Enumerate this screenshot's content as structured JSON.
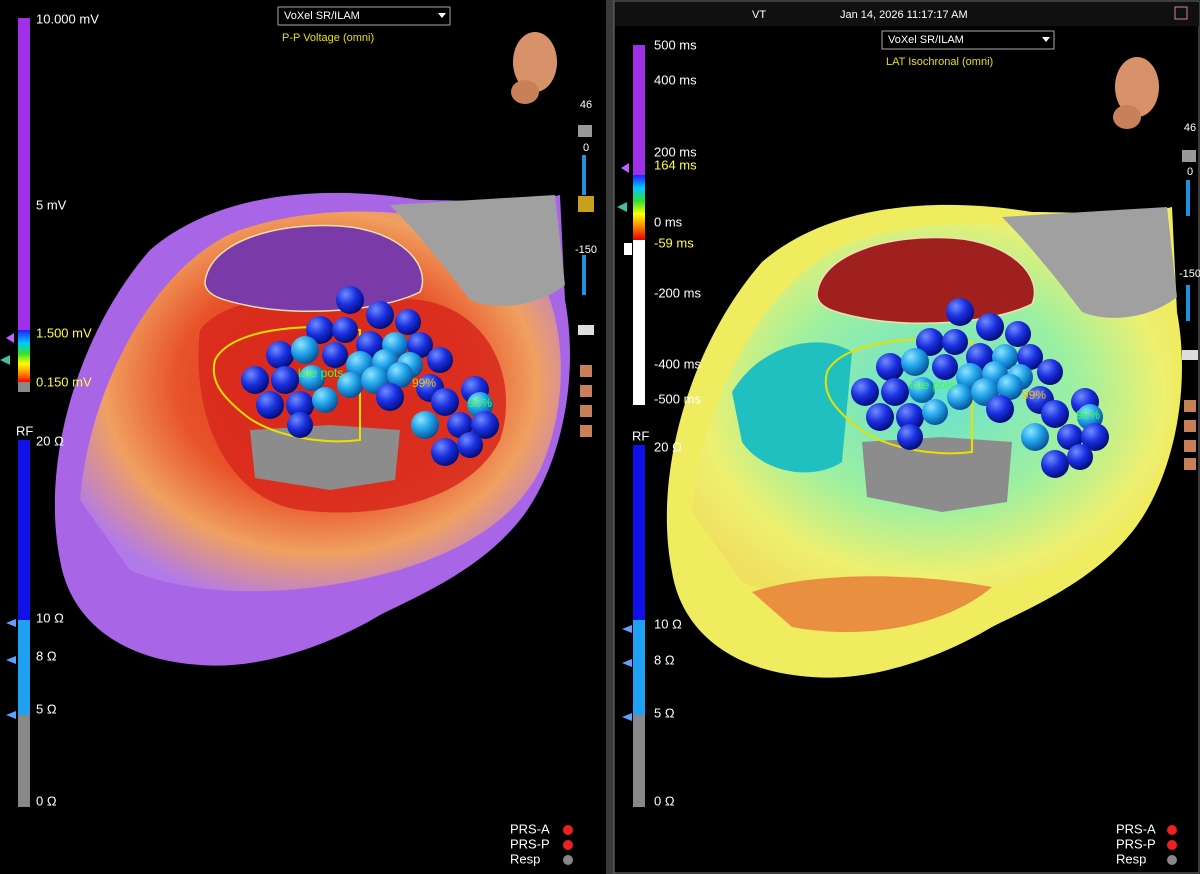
{
  "left": {
    "dropdown": "VoXel SR/ILAM",
    "map_label": "P-P Voltage (omni)",
    "scale_labels": [
      "10.000 mV",
      "5 mV",
      "1.500 mV",
      "0.150 mV"
    ],
    "rf_label": "RF",
    "rf_labels": [
      "20 Ω",
      "10 Ω",
      "8 Ω",
      "5 Ω",
      "0 Ω"
    ],
    "toolbar": [
      "46",
      "0",
      "-150"
    ],
    "annotations": [
      "late pots",
      "99%",
      "96%"
    ],
    "status": [
      "PRS-A",
      "PRS-P",
      "Resp"
    ]
  },
  "right": {
    "header": {
      "mode": "VT",
      "datetime": "Jan 14, 2026 11:17:17 AM"
    },
    "dropdown": "VoXel SR/ILAM",
    "map_label": "LAT Isochronal (omni)",
    "scale_labels": [
      "500 ms",
      "400 ms",
      "200 ms",
      "164 ms",
      "0 ms",
      "-59 ms",
      "-200 ms",
      "-400 ms",
      "-500 ms"
    ],
    "rf_label": "RF",
    "rf_labels": [
      "20 Ω",
      "10 Ω",
      "8 Ω",
      "5 Ω",
      "0 Ω"
    ],
    "toolbar": [
      "46",
      "0",
      "-150"
    ],
    "annotations": [
      "late pots",
      "99%",
      "96%"
    ],
    "status": [
      "PRS-A",
      "PRS-P",
      "Resp"
    ]
  }
}
